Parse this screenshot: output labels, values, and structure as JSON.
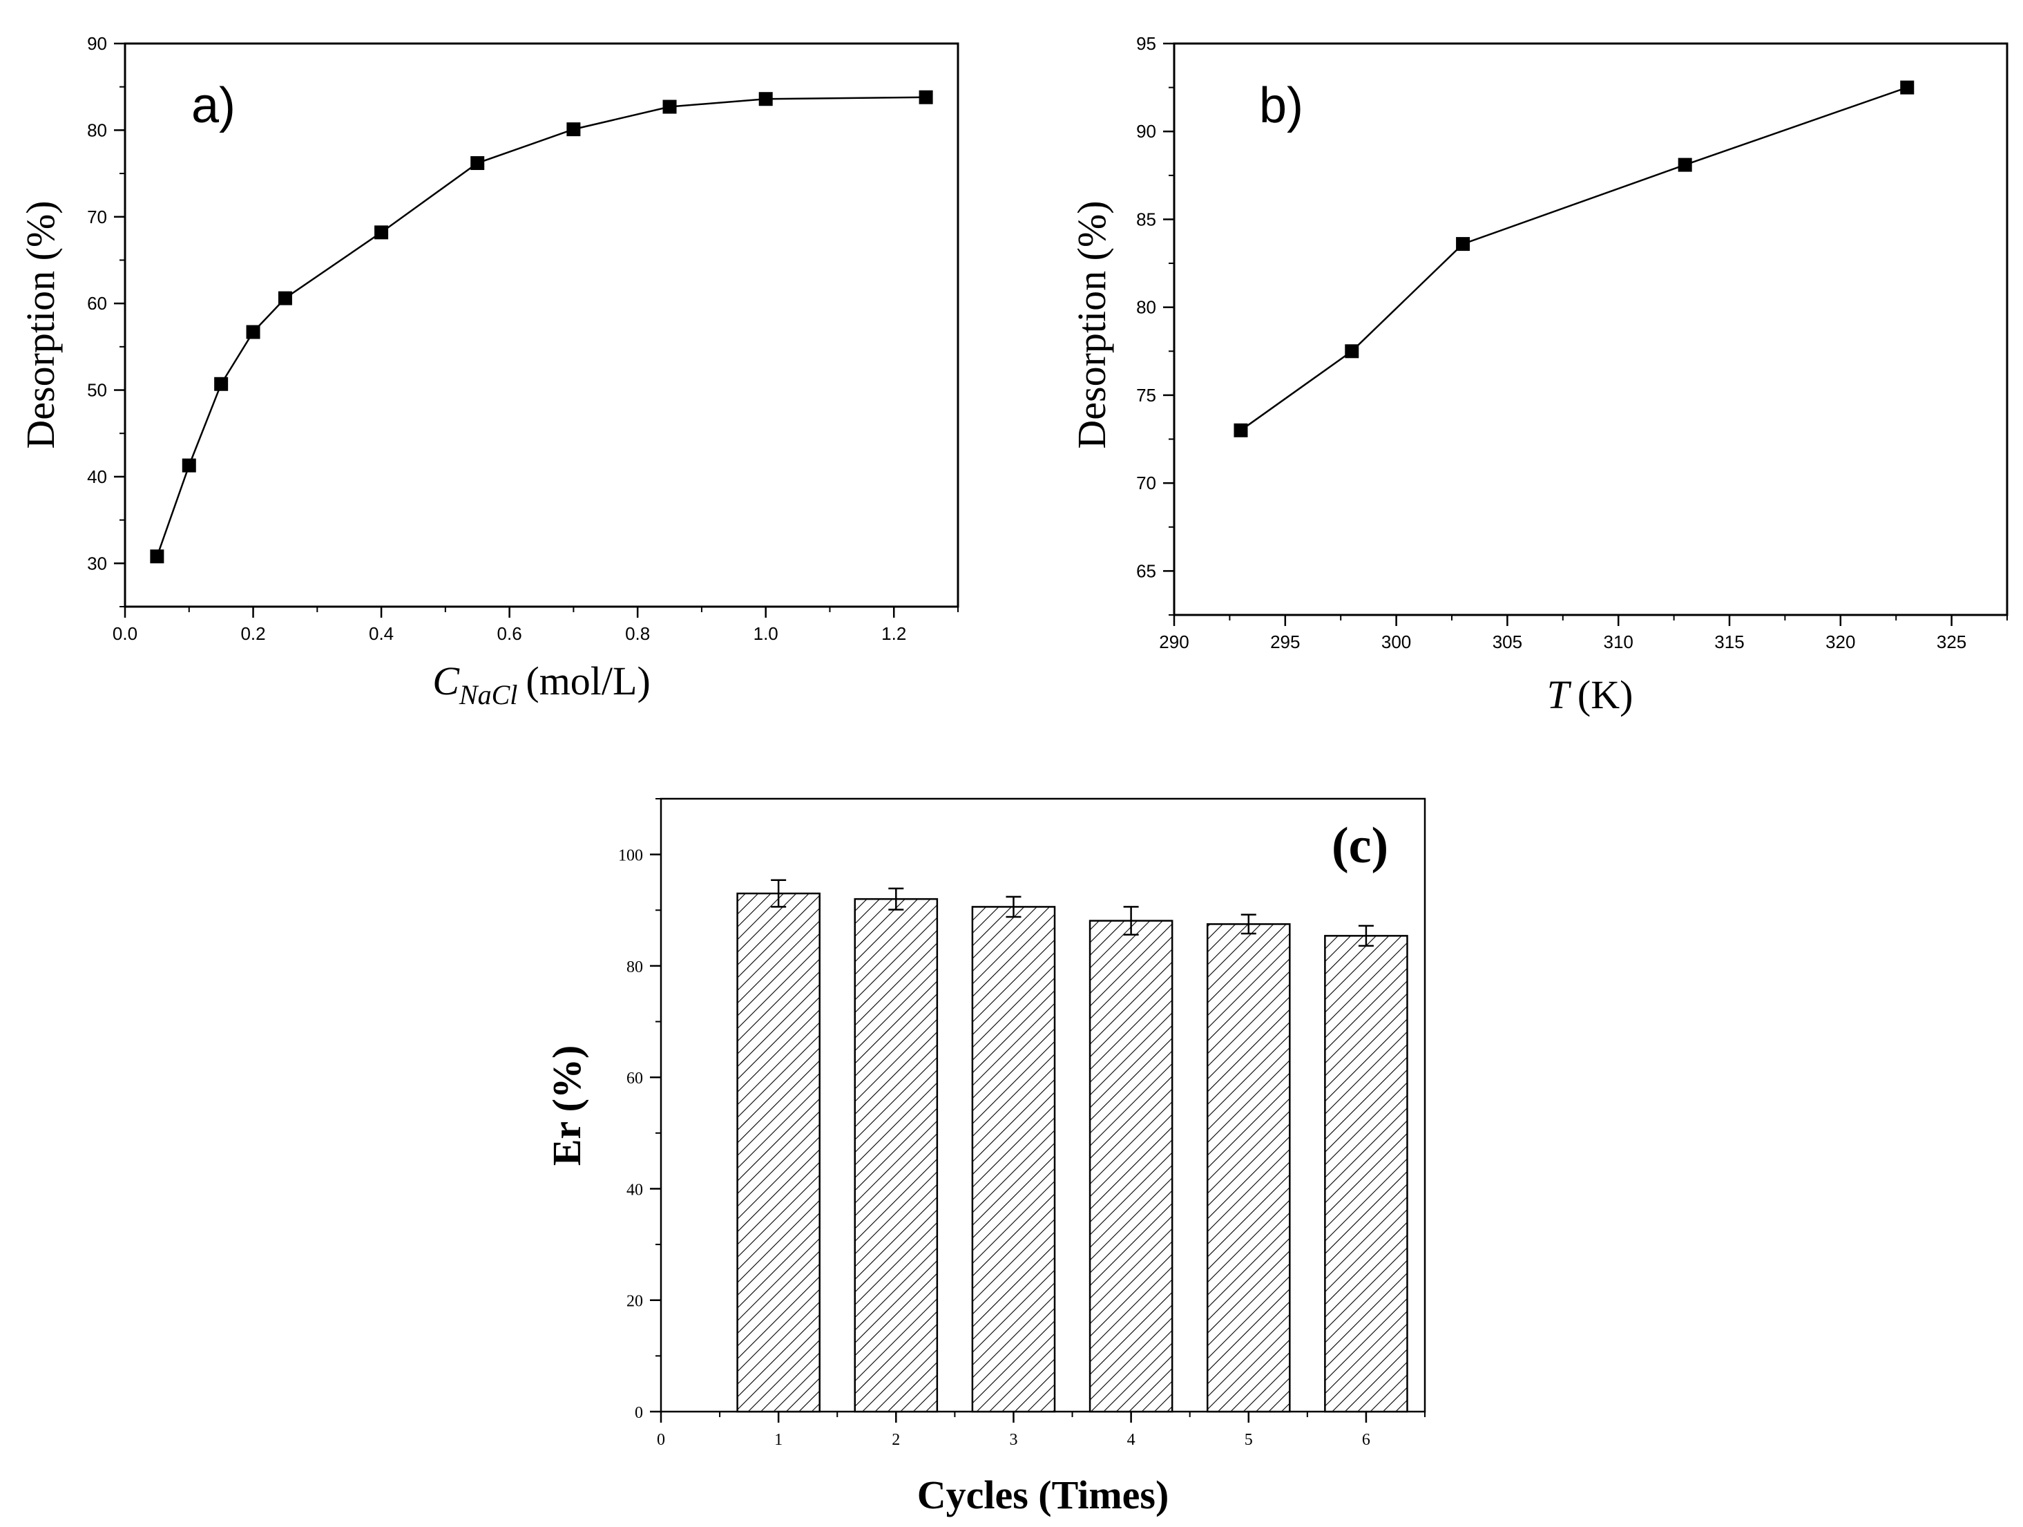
{
  "chart_data": [
    {
      "id": "a",
      "type": "line",
      "panel_label": "a)",
      "ylabel": "Desorption (%)",
      "xlabel_symbol": "C",
      "xlabel_subscript": "NaCl",
      "xlabel_unit": "(mol/L)",
      "xlim": [
        0.0,
        1.3
      ],
      "ylim": [
        25,
        90
      ],
      "x_ticks": [
        "0.0",
        "0.2",
        "0.4",
        "0.6",
        "0.8",
        "1.0",
        "1.2"
      ],
      "y_ticks": [
        "30",
        "40",
        "50",
        "60",
        "70",
        "80",
        "90"
      ],
      "x": [
        0.05,
        0.1,
        0.15,
        0.2,
        0.25,
        0.4,
        0.55,
        0.7,
        0.85,
        1.0,
        1.25
      ],
      "y": [
        30.8,
        41.3,
        50.7,
        56.7,
        60.6,
        68.2,
        76.2,
        80.1,
        82.7,
        83.6,
        83.8
      ]
    },
    {
      "id": "b",
      "type": "line",
      "panel_label": "b)",
      "ylabel": "Desorption (%)",
      "xlabel_symbol": "T",
      "xlabel_unit": "(K)",
      "xlim": [
        290,
        327.5
      ],
      "ylim": [
        62.5,
        95
      ],
      "x_ticks": [
        "290",
        "295",
        "300",
        "305",
        "310",
        "315",
        "320",
        "325"
      ],
      "y_ticks": [
        "65",
        "70",
        "75",
        "80",
        "85",
        "90",
        "95"
      ],
      "x": [
        293,
        298,
        303,
        313,
        323
      ],
      "y": [
        73.0,
        77.5,
        83.6,
        88.1,
        92.5
      ]
    },
    {
      "id": "c",
      "type": "bar",
      "panel_label": "(c)",
      "ylabel": "Er (%)",
      "xlabel": "Cycles (Times)",
      "xlim": [
        0,
        6.5
      ],
      "ylim": [
        0,
        110
      ],
      "x_ticks": [
        "0",
        "1",
        "2",
        "3",
        "4",
        "5",
        "6"
      ],
      "y_ticks": [
        "0",
        "20",
        "40",
        "60",
        "80",
        "100"
      ],
      "categories": [
        1,
        2,
        3,
        4,
        5,
        6
      ],
      "values": [
        93.0,
        92.0,
        90.6,
        88.1,
        87.5,
        85.4
      ],
      "errors": [
        2.4,
        1.9,
        1.8,
        2.5,
        1.7,
        1.8
      ]
    }
  ]
}
